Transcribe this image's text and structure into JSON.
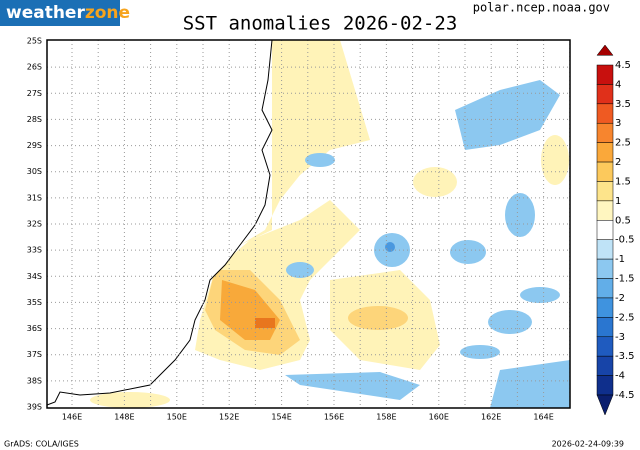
{
  "header": {
    "logo_weather": "weather",
    "logo_zone": "zone",
    "source": "polar.ncep.noaa.gov"
  },
  "map": {
    "title": "SST anomalies 2026-02-23",
    "lat_labels": [
      "25S",
      "26S",
      "27S",
      "28S",
      "29S",
      "30S",
      "31S",
      "32S",
      "33S",
      "34S",
      "35S",
      "36S",
      "37S",
      "38S",
      "39S"
    ],
    "lon_labels": [
      "146E",
      "148E",
      "150E",
      "152E",
      "154E",
      "156E",
      "158E",
      "160E",
      "162E",
      "164E"
    ]
  },
  "colorbar": {
    "labels": [
      "4.5",
      "4",
      "3.5",
      "3",
      "2.5",
      "2",
      "1.5",
      "1",
      "0.5",
      "-0.5",
      "-1",
      "-1.5",
      "-2",
      "-2.5",
      "-3",
      "-3.5",
      "-4",
      "-4.5"
    ]
  },
  "footer": {
    "credit": "GrADS: COLA/IGES",
    "timestamp": "2026-02-24-09:39"
  }
}
